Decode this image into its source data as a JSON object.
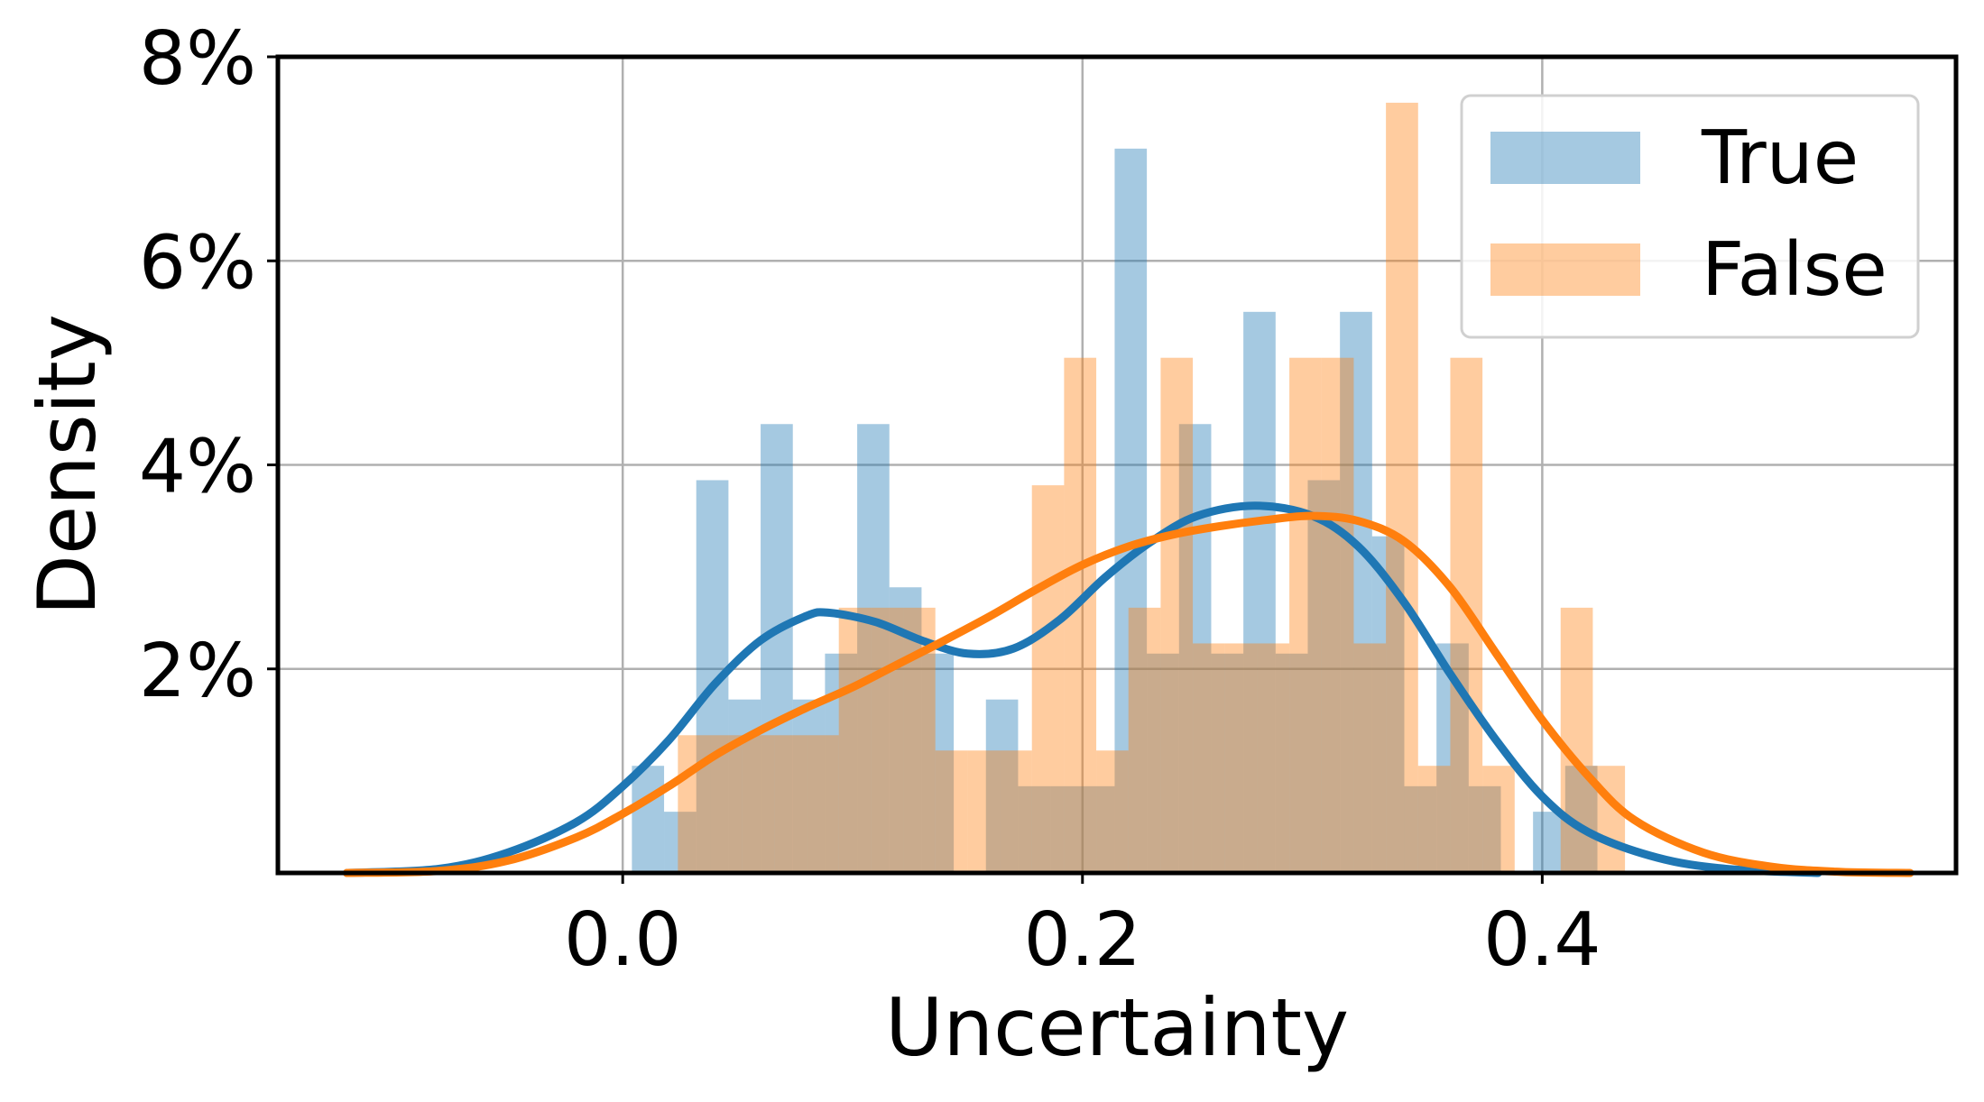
{
  "chart_data": {
    "type": "histogram+kde",
    "xlabel": "Uncertainty",
    "ylabel": "Density",
    "xlim": [
      -0.15,
      0.58
    ],
    "ylim": [
      0,
      0.08
    ],
    "x_ticks": [
      {
        "value": 0.0,
        "label": "0.0"
      },
      {
        "value": 0.2,
        "label": "0.2"
      },
      {
        "value": 0.4,
        "label": "0.4"
      }
    ],
    "y_ticks": [
      {
        "value": 0.02,
        "label": "2%"
      },
      {
        "value": 0.04,
        "label": "4%"
      },
      {
        "value": 0.06,
        "label": "6%"
      },
      {
        "value": 0.08,
        "label": "8%"
      }
    ],
    "grid": true,
    "legend": {
      "position": "top-right"
    },
    "series": [
      {
        "name": "True",
        "color": "#1f77b4",
        "bar_alpha": 0.4,
        "hist": [
          {
            "x0": 0.004,
            "x1": 0.018,
            "y": 0.0105
          },
          {
            "x0": 0.018,
            "x1": 0.032,
            "y": 0.006
          },
          {
            "x0": 0.032,
            "x1": 0.046,
            "y": 0.0385
          },
          {
            "x0": 0.046,
            "x1": 0.06,
            "y": 0.017
          },
          {
            "x0": 0.06,
            "x1": 0.074,
            "y": 0.044
          },
          {
            "x0": 0.074,
            "x1": 0.088,
            "y": 0.017
          },
          {
            "x0": 0.088,
            "x1": 0.102,
            "y": 0.0215
          },
          {
            "x0": 0.102,
            "x1": 0.116,
            "y": 0.044
          },
          {
            "x0": 0.116,
            "x1": 0.13,
            "y": 0.028
          },
          {
            "x0": 0.13,
            "x1": 0.144,
            "y": 0.0215
          },
          {
            "x0": 0.158,
            "x1": 0.172,
            "y": 0.017
          },
          {
            "x0": 0.172,
            "x1": 0.186,
            "y": 0.0085
          },
          {
            "x0": 0.186,
            "x1": 0.2,
            "y": 0.0085
          },
          {
            "x0": 0.2,
            "x1": 0.214,
            "y": 0.0085
          },
          {
            "x0": 0.214,
            "x1": 0.228,
            "y": 0.071
          },
          {
            "x0": 0.228,
            "x1": 0.242,
            "y": 0.0215
          },
          {
            "x0": 0.242,
            "x1": 0.256,
            "y": 0.044
          },
          {
            "x0": 0.256,
            "x1": 0.27,
            "y": 0.0215
          },
          {
            "x0": 0.27,
            "x1": 0.284,
            "y": 0.055
          },
          {
            "x0": 0.284,
            "x1": 0.298,
            "y": 0.0215
          },
          {
            "x0": 0.298,
            "x1": 0.312,
            "y": 0.0385
          },
          {
            "x0": 0.312,
            "x1": 0.326,
            "y": 0.055
          },
          {
            "x0": 0.326,
            "x1": 0.34,
            "y": 0.033
          },
          {
            "x0": 0.34,
            "x1": 0.354,
            "y": 0.0085
          },
          {
            "x0": 0.354,
            "x1": 0.368,
            "y": 0.0225
          },
          {
            "x0": 0.368,
            "x1": 0.382,
            "y": 0.0085
          },
          {
            "x0": 0.396,
            "x1": 0.41,
            "y": 0.006
          },
          {
            "x0": 0.41,
            "x1": 0.424,
            "y": 0.0105
          }
        ],
        "kde": [
          {
            "x": -0.12,
            "y": 0.0
          },
          {
            "x": -0.08,
            "y": 0.0004
          },
          {
            "x": -0.05,
            "y": 0.002
          },
          {
            "x": -0.02,
            "y": 0.005
          },
          {
            "x": 0.0,
            "y": 0.0085
          },
          {
            "x": 0.02,
            "y": 0.013
          },
          {
            "x": 0.04,
            "y": 0.0185
          },
          {
            "x": 0.06,
            "y": 0.0228
          },
          {
            "x": 0.08,
            "y": 0.0252
          },
          {
            "x": 0.09,
            "y": 0.0255
          },
          {
            "x": 0.11,
            "y": 0.0246
          },
          {
            "x": 0.13,
            "y": 0.0228
          },
          {
            "x": 0.15,
            "y": 0.0215
          },
          {
            "x": 0.17,
            "y": 0.022
          },
          {
            "x": 0.19,
            "y": 0.0248
          },
          {
            "x": 0.21,
            "y": 0.029
          },
          {
            "x": 0.23,
            "y": 0.0325
          },
          {
            "x": 0.25,
            "y": 0.035
          },
          {
            "x": 0.275,
            "y": 0.036
          },
          {
            "x": 0.3,
            "y": 0.035
          },
          {
            "x": 0.32,
            "y": 0.032
          },
          {
            "x": 0.34,
            "y": 0.0265
          },
          {
            "x": 0.36,
            "y": 0.0195
          },
          {
            "x": 0.38,
            "y": 0.013
          },
          {
            "x": 0.4,
            "y": 0.0075
          },
          {
            "x": 0.42,
            "y": 0.004
          },
          {
            "x": 0.45,
            "y": 0.0015
          },
          {
            "x": 0.48,
            "y": 0.0004
          },
          {
            "x": 0.52,
            "y": 0.0
          }
        ]
      },
      {
        "name": "False",
        "color": "#ff7f0e",
        "bar_alpha": 0.4,
        "hist": [
          {
            "x0": 0.024,
            "x1": 0.038,
            "y": 0.0135
          },
          {
            "x0": 0.038,
            "x1": 0.052,
            "y": 0.0135
          },
          {
            "x0": 0.052,
            "x1": 0.066,
            "y": 0.0135
          },
          {
            "x0": 0.066,
            "x1": 0.08,
            "y": 0.0135
          },
          {
            "x0": 0.08,
            "x1": 0.094,
            "y": 0.0135
          },
          {
            "x0": 0.094,
            "x1": 0.108,
            "y": 0.026
          },
          {
            "x0": 0.108,
            "x1": 0.122,
            "y": 0.026
          },
          {
            "x0": 0.122,
            "x1": 0.136,
            "y": 0.026
          },
          {
            "x0": 0.136,
            "x1": 0.15,
            "y": 0.012
          },
          {
            "x0": 0.15,
            "x1": 0.164,
            "y": 0.012
          },
          {
            "x0": 0.164,
            "x1": 0.178,
            "y": 0.012
          },
          {
            "x0": 0.178,
            "x1": 0.192,
            "y": 0.038
          },
          {
            "x0": 0.192,
            "x1": 0.206,
            "y": 0.0505
          },
          {
            "x0": 0.206,
            "x1": 0.22,
            "y": 0.012
          },
          {
            "x0": 0.22,
            "x1": 0.234,
            "y": 0.026
          },
          {
            "x0": 0.234,
            "x1": 0.248,
            "y": 0.0505
          },
          {
            "x0": 0.248,
            "x1": 0.262,
            "y": 0.0225
          },
          {
            "x0": 0.262,
            "x1": 0.276,
            "y": 0.0225
          },
          {
            "x0": 0.276,
            "x1": 0.29,
            "y": 0.0225
          },
          {
            "x0": 0.29,
            "x1": 0.304,
            "y": 0.0505
          },
          {
            "x0": 0.304,
            "x1": 0.318,
            "y": 0.0505
          },
          {
            "x0": 0.318,
            "x1": 0.332,
            "y": 0.0225
          },
          {
            "x0": 0.332,
            "x1": 0.346,
            "y": 0.0755
          },
          {
            "x0": 0.346,
            "x1": 0.36,
            "y": 0.0105
          },
          {
            "x0": 0.36,
            "x1": 0.374,
            "y": 0.0505
          },
          {
            "x0": 0.374,
            "x1": 0.388,
            "y": 0.0105
          },
          {
            "x0": 0.408,
            "x1": 0.422,
            "y": 0.026
          },
          {
            "x0": 0.422,
            "x1": 0.436,
            "y": 0.0105
          }
        ],
        "kde": [
          {
            "x": -0.12,
            "y": 0.0
          },
          {
            "x": -0.08,
            "y": 0.0002
          },
          {
            "x": -0.05,
            "y": 0.0012
          },
          {
            "x": -0.02,
            "y": 0.0035
          },
          {
            "x": 0.0,
            "y": 0.0058
          },
          {
            "x": 0.02,
            "y": 0.0085
          },
          {
            "x": 0.04,
            "y": 0.0115
          },
          {
            "x": 0.06,
            "y": 0.014
          },
          {
            "x": 0.08,
            "y": 0.0162
          },
          {
            "x": 0.1,
            "y": 0.0182
          },
          {
            "x": 0.12,
            "y": 0.0205
          },
          {
            "x": 0.14,
            "y": 0.0228
          },
          {
            "x": 0.16,
            "y": 0.0252
          },
          {
            "x": 0.18,
            "y": 0.0278
          },
          {
            "x": 0.2,
            "y": 0.0302
          },
          {
            "x": 0.22,
            "y": 0.032
          },
          {
            "x": 0.24,
            "y": 0.0332
          },
          {
            "x": 0.26,
            "y": 0.034
          },
          {
            "x": 0.28,
            "y": 0.0346
          },
          {
            "x": 0.3,
            "y": 0.035
          },
          {
            "x": 0.32,
            "y": 0.0345
          },
          {
            "x": 0.34,
            "y": 0.0325
          },
          {
            "x": 0.36,
            "y": 0.028
          },
          {
            "x": 0.38,
            "y": 0.0215
          },
          {
            "x": 0.4,
            "y": 0.015
          },
          {
            "x": 0.42,
            "y": 0.0095
          },
          {
            "x": 0.44,
            "y": 0.0052
          },
          {
            "x": 0.47,
            "y": 0.002
          },
          {
            "x": 0.5,
            "y": 0.0006
          },
          {
            "x": 0.53,
            "y": 0.0001
          },
          {
            "x": 0.56,
            "y": 0.0
          }
        ]
      }
    ]
  }
}
